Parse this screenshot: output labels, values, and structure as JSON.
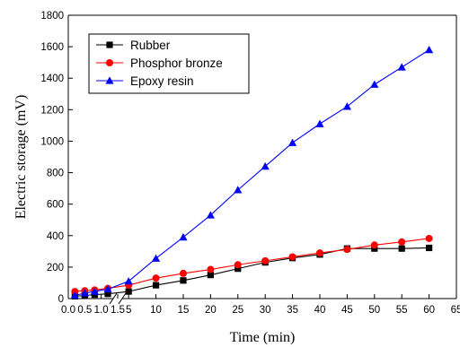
{
  "chart_data": {
    "type": "line",
    "xlabel": "Time (min)",
    "ylabel": "Electric storage (mV)",
    "ylim": [
      0,
      1800
    ],
    "yticks": [
      0,
      200,
      400,
      600,
      800,
      1000,
      1200,
      1400,
      1600,
      1800
    ],
    "x_axis": {
      "broken": true,
      "segments": [
        {
          "range": [
            0,
            1.5
          ],
          "ticks": [
            0.0,
            0.5,
            1.0,
            1.5
          ],
          "tick_labels": [
            "0.0",
            "0.5",
            "1.0",
            "1.5"
          ]
        },
        {
          "range": [
            3,
            65
          ],
          "ticks": [
            5,
            10,
            15,
            20,
            25,
            30,
            35,
            40,
            45,
            50,
            55,
            60,
            65
          ],
          "tick_labels": [
            "5",
            "10",
            "15",
            "20",
            "25",
            "30",
            "35",
            "40",
            "45",
            "50",
            "55",
            "60",
            "65"
          ]
        }
      ]
    },
    "grid": false,
    "legend_position": "top-left",
    "x": [
      0.2,
      0.5,
      0.8,
      1.2,
      5,
      10,
      15,
      20,
      25,
      30,
      35,
      40,
      45,
      50,
      55,
      60
    ],
    "series": [
      {
        "name": "Rubber",
        "color": "#000000",
        "marker": "square",
        "values": [
          15,
          20,
          25,
          30,
          45,
          85,
          115,
          150,
          190,
          230,
          258,
          280,
          318,
          318,
          318,
          322
        ]
      },
      {
        "name": "Phosphor bronze",
        "color": "#ff0000",
        "marker": "circle",
        "values": [
          45,
          50,
          55,
          65,
          85,
          130,
          160,
          185,
          215,
          240,
          265,
          290,
          312,
          340,
          360,
          382
        ]
      },
      {
        "name": "Epoxy resin",
        "color": "#0000ff",
        "marker": "triangle",
        "values": [
          20,
          35,
          45,
          60,
          110,
          255,
          390,
          530,
          690,
          840,
          990,
          1110,
          1220,
          1360,
          1470,
          1580
        ]
      }
    ]
  }
}
